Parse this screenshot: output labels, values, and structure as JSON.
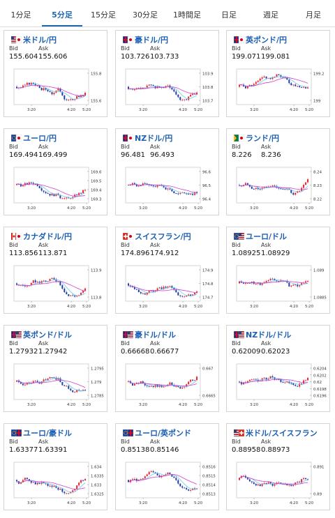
{
  "tabs": [
    "1分足",
    "5分足",
    "15分足",
    "30分足",
    "1時間足",
    "日足",
    "週足",
    "月足"
  ],
  "active_tab": 1,
  "labels": {
    "bid": "Bid",
    "ask": "Ask"
  },
  "cards": [
    {
      "pair": "米ドル/円",
      "flag": "us-jp-flag",
      "bid": "155.604",
      "ask": "155.606",
      "ticks": [
        "155.8",
        "155.6"
      ],
      "times": [
        "3:20",
        "4:20",
        "5:20"
      ]
    },
    {
      "pair": "豪ドル/円",
      "flag": "au-jp-flag",
      "bid": "103.726",
      "ask": "103.733",
      "ticks": [
        "103.9",
        "103.8",
        "103.7"
      ],
      "times": [
        "3:20",
        "4:20",
        "5:20"
      ]
    },
    {
      "pair": "英ポンド/円",
      "flag": "gb-jp-flag",
      "bid": "199.071",
      "ask": "199.081",
      "ticks": [
        "199.2",
        "199"
      ],
      "times": [
        "3:20",
        "4:20",
        "5:20"
      ]
    },
    {
      "pair": "ユーロ/円",
      "flag": "eu-jp-flag",
      "bid": "169.494",
      "ask": "169.499",
      "ticks": [
        "169.6",
        "169.5",
        "169.4",
        "169.3"
      ],
      "times": [
        "3:20",
        "4:20",
        "5:20"
      ]
    },
    {
      "pair": "NZドル/円",
      "flag": "nz-jp-flag",
      "bid": "96.481",
      "ask": "96.493",
      "ticks": [
        "96.6",
        "96.5",
        "96.4"
      ],
      "times": [
        "3:20",
        "4:20",
        "5:20"
      ]
    },
    {
      "pair": "ランド/円",
      "flag": "za-jp-flag",
      "bid": "8.226",
      "ask": "8.236",
      "ticks": [
        "8.24",
        "8.23",
        "8.22"
      ],
      "times": [
        "3:20",
        "4:20",
        "5:20"
      ]
    },
    {
      "pair": "カナダドル/円",
      "flag": "ca-jp-flag",
      "bid": "113.856",
      "ask": "113.871",
      "ticks": [
        "113.9",
        "113.8"
      ],
      "times": [
        "3:20",
        "4:20",
        "5:20"
      ]
    },
    {
      "pair": "スイスフラン/円",
      "flag": "ch-jp-flag",
      "bid": "174.896",
      "ask": "174.912",
      "ticks": [
        "174.9",
        "174.8",
        "174.7"
      ],
      "times": [
        "3:20",
        "4:20",
        "5:20"
      ]
    },
    {
      "pair": "ユーロ/ドル",
      "flag": "eu-us-flag",
      "bid": "1.08925",
      "ask": "1.08929",
      "ticks": [
        "1.089",
        "1.0885"
      ],
      "times": [
        "3:20",
        "4:20",
        "5:20"
      ]
    },
    {
      "pair": "英ポンド/ドル",
      "flag": "gb-us-flag",
      "bid": "1.27932",
      "ask": "1.27942",
      "ticks": [
        "1.2795",
        "1.279",
        "1.2785"
      ],
      "times": [
        "3:20",
        "4:20",
        "5:20"
      ]
    },
    {
      "pair": "豪ドル/ドル",
      "flag": "au-us-flag",
      "bid": "0.66668",
      "ask": "0.66677",
      "ticks": [
        "0.667",
        "0.6665"
      ],
      "times": [
        "3:20",
        "4:20",
        "5:20"
      ]
    },
    {
      "pair": "NZドル/ドル",
      "flag": "nz-us-flag",
      "bid": "0.62009",
      "ask": "0.62023",
      "ticks": [
        "0.6204",
        "0.6202",
        "0.62",
        "0.6198",
        "0.6196"
      ],
      "times": [
        "3:20",
        "4:20",
        "5:20"
      ]
    },
    {
      "pair": "ユーロ/豪ドル",
      "flag": "eu-au-flag",
      "bid": "1.63377",
      "ask": "1.63391",
      "ticks": [
        "1.634",
        "1.6335",
        "1.633",
        "1.6325"
      ],
      "times": [
        "3:20",
        "4:20",
        "5:20"
      ]
    },
    {
      "pair": "ユーロ/英ポンド",
      "flag": "eu-gb-flag",
      "bid": "0.85138",
      "ask": "0.85146",
      "ticks": [
        "0.8516",
        "0.8515",
        "0.8514",
        "0.8513"
      ],
      "times": [
        "3:20",
        "4:20",
        "5:20"
      ]
    },
    {
      "pair": "米ドル/スイスフラン",
      "flag": "us-ch-flag",
      "bid": "0.88958",
      "ask": "0.88973",
      "ticks": [
        "0.891",
        "0.89"
      ],
      "times": [
        "3:20",
        "4:20",
        "5:20"
      ]
    }
  ],
  "colors": {
    "up": "#e8262b",
    "down": "#1e3fa8",
    "ma_short": "#6fc8e8",
    "ma_long": "#d23fd0",
    "link": "#1a5fb4"
  }
}
